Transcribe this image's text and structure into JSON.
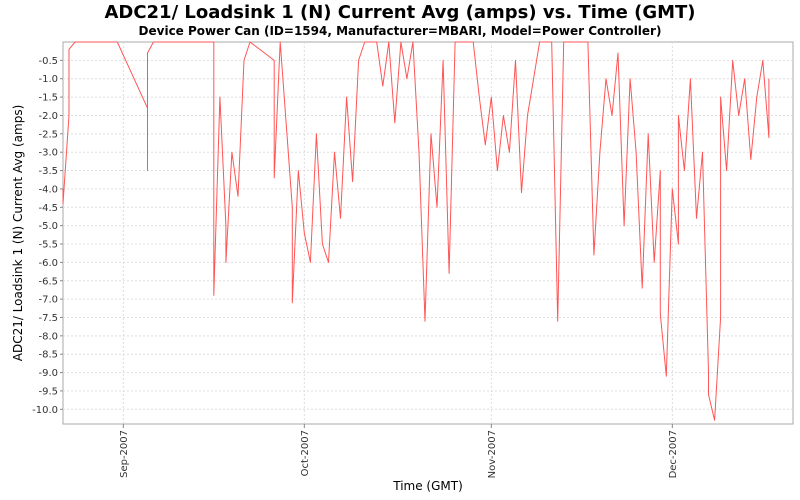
{
  "chart_data": {
    "type": "line",
    "title": "ADC21/ Loadsink 1 (N) Current Avg (amps) vs. Time (GMT)",
    "subtitle": "Device Power Can (ID=1594, Manufacturer=MBARI, Model=Power Controller)",
    "xlabel": "Time (GMT)",
    "ylabel": "ADC21/ Loadsink 1 (N) Current Avg (amps)",
    "x_ticks": [
      {
        "label": "Sep-2007",
        "date": "2007-09-01"
      },
      {
        "label": "Oct-2007",
        "date": "2007-10-01"
      },
      {
        "label": "Nov-2007",
        "date": "2007-11-01"
      },
      {
        "label": "Dec-2007",
        "date": "2007-12-01"
      }
    ],
    "y_ticks": [
      -0.5,
      -1.0,
      -1.5,
      -2.0,
      -2.5,
      -3.0,
      -3.5,
      -4.0,
      -4.5,
      -5.0,
      -5.5,
      -6.0,
      -6.5,
      -7.0,
      -7.5,
      -8.0,
      -8.5,
      -9.0,
      -9.5,
      -10.0
    ],
    "ylim": [
      -10.4,
      0.0
    ],
    "xlim": [
      "2007-08-22",
      "2007-12-21"
    ],
    "grid": true,
    "series": [
      {
        "color": "#ff5555",
        "points": [
          [
            "2007-08-22",
            -4.0
          ],
          [
            "2007-08-22",
            -4.4
          ],
          [
            "2007-08-23",
            -2.0
          ],
          [
            "2007-08-23",
            -0.2
          ],
          [
            "2007-08-24",
            0.0
          ],
          [
            "2007-08-31",
            0.0
          ],
          [
            "2007-09-05",
            -1.8
          ],
          [
            "2007-09-05",
            -3.5
          ],
          [
            "2007-09-05",
            -0.3
          ],
          [
            "2007-09-06",
            0.0
          ],
          [
            "2007-09-16",
            0.0
          ],
          [
            "2007-09-16",
            -6.9
          ],
          [
            "2007-09-17",
            -1.5
          ],
          [
            "2007-09-18",
            -5.0
          ],
          [
            "2007-09-18",
            -6.0
          ],
          [
            "2007-09-19",
            -3.0
          ],
          [
            "2007-09-20",
            -4.2
          ],
          [
            "2007-09-21",
            -0.5
          ],
          [
            "2007-09-22",
            0.0
          ],
          [
            "2007-09-26",
            -0.5
          ],
          [
            "2007-09-26",
            -3.7
          ],
          [
            "2007-09-27",
            0.0
          ],
          [
            "2007-09-29",
            -4.5
          ],
          [
            "2007-09-29",
            -7.1
          ],
          [
            "2007-09-30",
            -3.5
          ],
          [
            "2007-10-01",
            -5.2
          ],
          [
            "2007-10-02",
            -6.0
          ],
          [
            "2007-10-03",
            -2.5
          ],
          [
            "2007-10-04",
            -5.5
          ],
          [
            "2007-10-05",
            -6.0
          ],
          [
            "2007-10-06",
            -3.0
          ],
          [
            "2007-10-07",
            -4.8
          ],
          [
            "2007-10-08",
            -1.5
          ],
          [
            "2007-10-09",
            -3.8
          ],
          [
            "2007-10-10",
            -0.5
          ],
          [
            "2007-10-11",
            0.0
          ],
          [
            "2007-10-13",
            0.0
          ],
          [
            "2007-10-14",
            -1.2
          ],
          [
            "2007-10-15",
            0.0
          ],
          [
            "2007-10-16",
            -2.2
          ],
          [
            "2007-10-17",
            0.0
          ],
          [
            "2007-10-18",
            -1.0
          ],
          [
            "2007-10-19",
            0.0
          ],
          [
            "2007-10-20",
            -3.0
          ],
          [
            "2007-10-21",
            -7.6
          ],
          [
            "2007-10-22",
            -2.5
          ],
          [
            "2007-10-23",
            -4.5
          ],
          [
            "2007-10-24",
            -0.5
          ],
          [
            "2007-10-25",
            -6.3
          ],
          [
            "2007-10-26",
            0.0
          ],
          [
            "2007-10-29",
            0.0
          ],
          [
            "2007-10-30",
            -1.5
          ],
          [
            "2007-10-31",
            -2.8
          ],
          [
            "2007-11-01",
            -1.5
          ],
          [
            "2007-11-02",
            -3.5
          ],
          [
            "2007-11-03",
            -2.0
          ],
          [
            "2007-11-04",
            -3.0
          ],
          [
            "2007-11-05",
            -0.5
          ],
          [
            "2007-11-06",
            -4.1
          ],
          [
            "2007-11-07",
            -2.0
          ],
          [
            "2007-11-08",
            -1.0
          ],
          [
            "2007-11-09",
            0.0
          ],
          [
            "2007-11-11",
            0.0
          ],
          [
            "2007-11-12",
            -7.6
          ],
          [
            "2007-11-13",
            0.0
          ],
          [
            "2007-11-17",
            0.0
          ],
          [
            "2007-11-18",
            -5.8
          ],
          [
            "2007-11-19",
            -3.0
          ],
          [
            "2007-11-20",
            -1.0
          ],
          [
            "2007-11-21",
            -2.0
          ],
          [
            "2007-11-22",
            -0.3
          ],
          [
            "2007-11-23",
            -5.0
          ],
          [
            "2007-11-24",
            -1.0
          ],
          [
            "2007-11-25",
            -3.0
          ],
          [
            "2007-11-26",
            -6.7
          ],
          [
            "2007-11-27",
            -2.5
          ],
          [
            "2007-11-28",
            -6.0
          ],
          [
            "2007-11-29",
            -3.5
          ],
          [
            "2007-11-29",
            -7.4
          ],
          [
            "2007-11-30",
            -9.1
          ],
          [
            "2007-12-01",
            -4.0
          ],
          [
            "2007-12-02",
            -5.5
          ],
          [
            "2007-12-02",
            -2.0
          ],
          [
            "2007-12-03",
            -3.5
          ],
          [
            "2007-12-04",
            -1.0
          ],
          [
            "2007-12-05",
            -4.8
          ],
          [
            "2007-12-06",
            -3.0
          ],
          [
            "2007-12-07",
            -9.0
          ],
          [
            "2007-12-07",
            -9.6
          ],
          [
            "2007-12-08",
            -10.3
          ],
          [
            "2007-12-09",
            -7.5
          ],
          [
            "2007-12-09",
            -1.5
          ],
          [
            "2007-12-10",
            -3.5
          ],
          [
            "2007-12-11",
            -0.5
          ],
          [
            "2007-12-12",
            -2.0
          ],
          [
            "2007-12-13",
            -1.0
          ],
          [
            "2007-12-14",
            -3.2
          ],
          [
            "2007-12-15",
            -1.5
          ],
          [
            "2007-12-16",
            -0.5
          ],
          [
            "2007-12-17",
            -2.6
          ],
          [
            "2007-12-17",
            -1.0
          ]
        ]
      }
    ]
  }
}
